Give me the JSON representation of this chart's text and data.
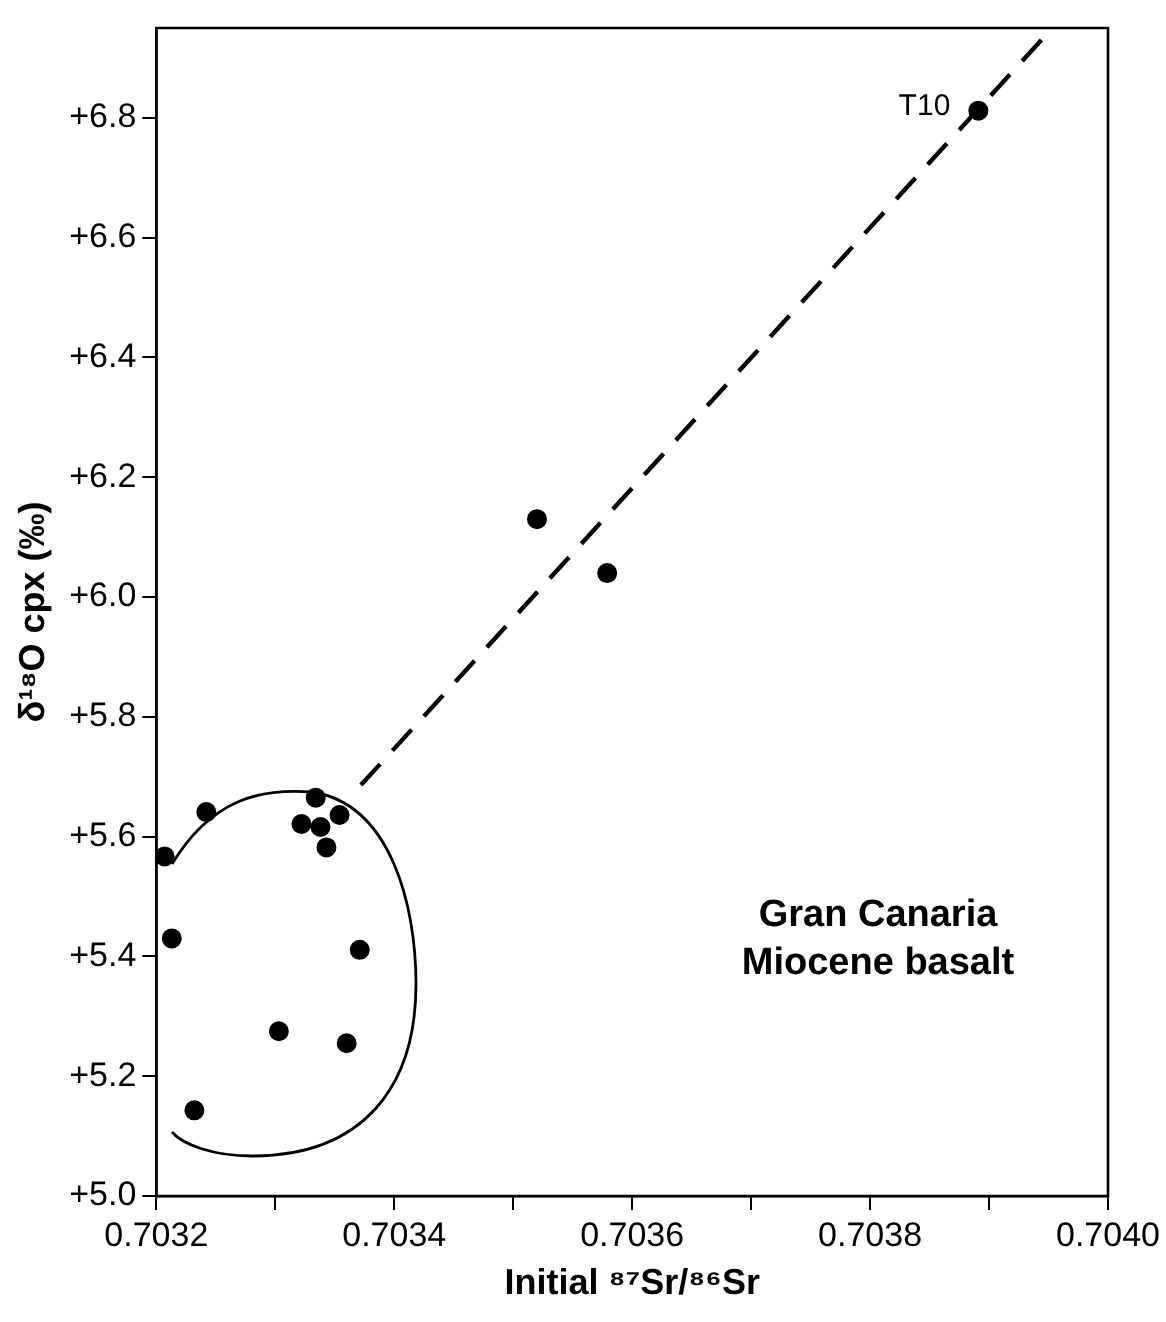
{
  "chart_data": {
    "type": "scatter",
    "xlabel": "Initial ⁸⁷Sr/⁸⁶Sr",
    "ylabel": "δ¹⁸O cpx (‰)",
    "xlim": [
      0.7032,
      0.704
    ],
    "xticks": [
      {
        "value": 0.7032,
        "label": "0.7032"
      },
      {
        "value": 0.7033,
        "label": null
      },
      {
        "value": 0.7034,
        "label": "0.7034"
      },
      {
        "value": 0.7035,
        "label": null
      },
      {
        "value": 0.7036,
        "label": "0.7036"
      },
      {
        "value": 0.7037,
        "label": null
      },
      {
        "value": 0.7038,
        "label": "0.7038"
      },
      {
        "value": 0.7039,
        "label": null
      },
      {
        "value": 0.704,
        "label": "0.7040"
      }
    ],
    "ylim": [
      5.0,
      6.95
    ],
    "yticks": [
      {
        "value": 5.0,
        "label": "+5.0"
      },
      {
        "value": 5.2,
        "label": "+5.2"
      },
      {
        "value": 5.4,
        "label": "+5.4"
      },
      {
        "value": 5.6,
        "label": "+5.6"
      },
      {
        "value": 5.8,
        "label": "+5.8"
      },
      {
        "value": 6.0,
        "label": "+6.0"
      },
      {
        "value": 6.2,
        "label": "+6.2"
      },
      {
        "value": 6.4,
        "label": "+6.4"
      },
      {
        "value": 6.6,
        "label": "+6.6"
      },
      {
        "value": 6.8,
        "label": "+6.8"
      }
    ],
    "grid": false,
    "legend": false,
    "marker": "circle",
    "series": [
      {
        "color": "#000000",
        "x": [
          0.703207,
          0.703213,
          0.703232,
          0.703242,
          0.703303,
          0.703322,
          0.703334,
          0.703338,
          0.703343,
          0.703354,
          0.70336,
          0.703371,
          0.70352,
          0.703579,
          0.703891
        ],
        "values": [
          5.567,
          5.43,
          5.143,
          5.641,
          5.275,
          5.621,
          5.665,
          5.616,
          5.582,
          5.636,
          5.255,
          5.411,
          6.13,
          6.04,
          6.812
        ]
      },
      {
        "type": "line",
        "color": "#000000",
        "line_style": "dashed",
        "marker": "none",
        "x": [
          0.703944,
          0.703372
        ],
        "values": [
          6.93,
          5.686
        ]
      }
    ],
    "annotations": [
      {
        "text": "T10",
        "x": 0.703891,
        "y": 6.812
      },
      "Gran Canaria\nMiocene basalt"
    ]
  }
}
